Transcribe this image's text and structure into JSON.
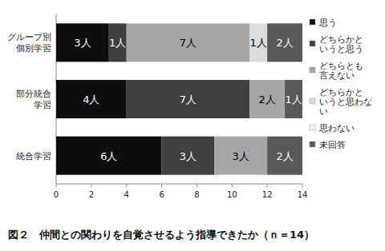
{
  "chart_data": {
    "type": "bar",
    "orientation": "horizontal",
    "stacked": true,
    "title": "図２　仲間との関わりを自覚させるよう指導できたか（ｎ＝14）",
    "categories": [
      "グループ別\n個別学習",
      "部分統合\n学習",
      "統合学習"
    ],
    "series": [
      {
        "name": "思う",
        "color": "#0d0d0d",
        "values": [
          3,
          4,
          6
        ],
        "value_labels": [
          "3人",
          "4人",
          "6人"
        ]
      },
      {
        "name": "どちらかと\nいうと思う",
        "color": "#404040",
        "values": [
          1,
          7,
          3
        ],
        "value_labels": [
          "1人",
          "7人",
          "3人"
        ]
      },
      {
        "name": "どちらとも\n言えない",
        "color": "#a6a6a6",
        "values": [
          7,
          2,
          3
        ],
        "value_labels": [
          "7人",
          "2人",
          "3人"
        ]
      },
      {
        "name": "どちらかと\nいうと思わな\nい",
        "color": "#dcdcdc",
        "values": [
          1,
          0,
          0
        ],
        "value_labels": [
          "1人",
          null,
          null
        ]
      },
      {
        "name": "思わない",
        "color": "#f4f4f4",
        "values": [
          0,
          0,
          0
        ],
        "value_labels": [
          null,
          null,
          null
        ]
      },
      {
        "name": "未回答",
        "color": "#595959",
        "values": [
          2,
          1,
          2
        ],
        "value_labels": [
          "2人",
          "1人",
          "2人"
        ]
      }
    ],
    "xlim": [
      0,
      14
    ],
    "xticks": [
      0,
      2,
      4,
      6,
      8,
      10,
      12,
      14
    ],
    "grid": false,
    "legend": "right",
    "data_labels": true
  }
}
